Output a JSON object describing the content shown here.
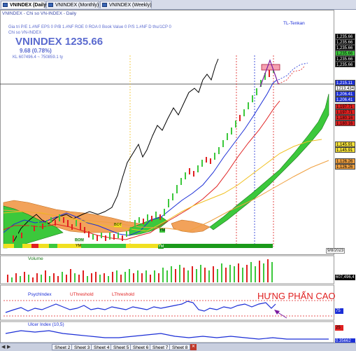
{
  "tabs": [
    {
      "label": "VNINDEX (Daily)",
      "active": true
    },
    {
      "label": "VNINDEX (Monthly)",
      "active": false
    },
    {
      "label": "VNINDEX (Weekly)",
      "active": false
    }
  ],
  "header": {
    "title_line": "VNINDEX - Chi so VN-INDEX - Daily",
    "metrics_line": "Gia tri P/E 1.#NF  EPS 0     P/B 1.#NF ROE 0     ROA 0     Book Value 0     P/S 1.#NF D thu/1CP 0",
    "company": "Chi so VN-INDEX",
    "symbol_price": "VNINDEX 1235.66",
    "change": "9.68 (0.78%)",
    "kl": "KL 607496.4 ~ 750859.1 ty",
    "tenkan_label": "TL-Tenkan"
  },
  "price_axis": [
    {
      "text": "1,235.66",
      "bg": "#000000",
      "fg": "#ffffff"
    },
    {
      "text": "1,235.66",
      "bg": "#000000",
      "fg": "#ffffff"
    },
    {
      "text": "1,235.66",
      "bg": "#000000",
      "fg": "#ffffff"
    },
    {
      "text": "1,235.66",
      "bg": "#3cc83c",
      "fg": "#000000"
    },
    {
      "text": "1,235.66",
      "bg": "#000000",
      "fg": "#ffffff"
    },
    {
      "text": "1,235.66",
      "bg": "#000000",
      "fg": "#ffffff"
    },
    {
      "text": "1,215.11",
      "bg": "#1b2ed6",
      "fg": "#ffffff"
    },
    {
      "text": "1213.434",
      "bg": "#ffffff",
      "fg": "#000000"
    },
    {
      "text": "1,206.41",
      "bg": "#1b2ed6",
      "fg": "#ffffff"
    },
    {
      "text": "1,206.41",
      "bg": "#1b2ed6",
      "fg": "#ffffff"
    },
    {
      "text": "1,197.71",
      "bg": "#e02020",
      "fg": "#000000"
    },
    {
      "text": "1,197.71",
      "bg": "#e02020",
      "fg": "#000000"
    },
    {
      "text": "1,180.16",
      "bg": "#e02020",
      "fg": "#000000"
    },
    {
      "text": "1,180.16",
      "bg": "#e02020",
      "fg": "#000000"
    },
    {
      "text": "1,145.91",
      "bg": "#f5e23b",
      "fg": "#000000"
    },
    {
      "text": "1,145.91",
      "bg": "#f5e23b",
      "fg": "#000000"
    },
    {
      "text": "1,126.26",
      "bg": "#f0a040",
      "fg": "#000000"
    },
    {
      "text": "1,126.26",
      "bg": "#f0a040",
      "fg": "#000000"
    }
  ],
  "date_label": "9/8/2023",
  "volume": {
    "label": "Volume",
    "value": "607,496,4"
  },
  "psy": {
    "labels": [
      "PsychIndex",
      "UThreshold",
      "LThreshold"
    ],
    "value_top": "75",
    "value_bot": "25"
  },
  "annotation": "HƯNG PHẤN CAO",
  "ulcer": {
    "label": "Ulcer Index (10,5)",
    "value": "0.35662"
  },
  "markers": {
    "bom": "BOM",
    "ym1": "YM",
    "ym2": "YM",
    "ym3": "YM",
    "bot": "BOT"
  },
  "sheets": [
    "Sheet 2",
    "Sheet 3",
    "Sheet 4",
    "Sheet 5",
    "Sheet 6",
    "Sheet 7",
    "Sheet 8"
  ]
}
